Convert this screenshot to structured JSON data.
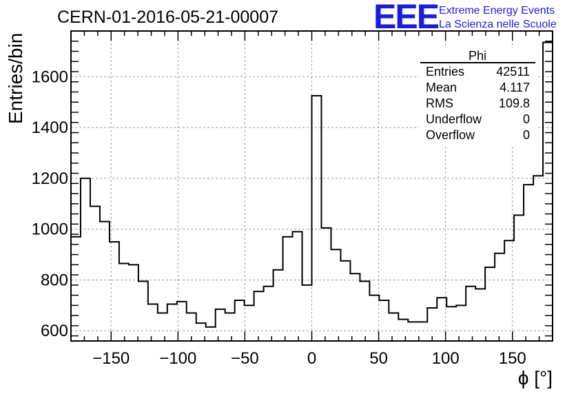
{
  "chart_data": {
    "type": "bar",
    "style": "step-histogram",
    "title": "CERN-01-2016-05-21-00007",
    "xlabel": "ϕ [°]",
    "ylabel": "Entries/bin",
    "xlim": [
      -180,
      180
    ],
    "ylim": [
      560,
      1780
    ],
    "grid": true,
    "x_ticks": [
      -150,
      -100,
      -50,
      0,
      50,
      100,
      150
    ],
    "x_tick_labels": [
      "−150",
      "−100",
      "−50",
      "0",
      "50",
      "100",
      "150"
    ],
    "y_ticks": [
      600,
      800,
      1000,
      1200,
      1400,
      1600
    ],
    "y_tick_labels": [
      "600",
      "800",
      "1000",
      "1200",
      "1400",
      "1600"
    ],
    "bin_width": 7.2,
    "bin_start": -180,
    "values": [
      970,
      1200,
      1090,
      1030,
      950,
      865,
      860,
      795,
      705,
      670,
      705,
      715,
      670,
      630,
      615,
      685,
      670,
      720,
      700,
      755,
      775,
      840,
      970,
      990,
      780,
      1525,
      1005,
      920,
      875,
      825,
      795,
      740,
      720,
      670,
      645,
      635,
      635,
      690,
      730,
      695,
      700,
      775,
      765,
      850,
      905,
      955,
      1055,
      1175,
      1210,
      1735
    ],
    "series": [
      {
        "name": "Phi"
      }
    ]
  },
  "stats_box": {
    "title": "Phi",
    "rows": [
      {
        "label": "Entries",
        "value": "42511"
      },
      {
        "label": "Mean",
        "value": "4.117"
      },
      {
        "label": "RMS",
        "value": "109.8"
      },
      {
        "label": "Underflow",
        "value": "0"
      },
      {
        "label": "Overflow",
        "value": "0"
      }
    ]
  },
  "logo": {
    "mark": "EEE",
    "line1": "Extreme Energy Events",
    "line2": "La Scienza nelle Scuole",
    "color": "#1a1ae6"
  }
}
